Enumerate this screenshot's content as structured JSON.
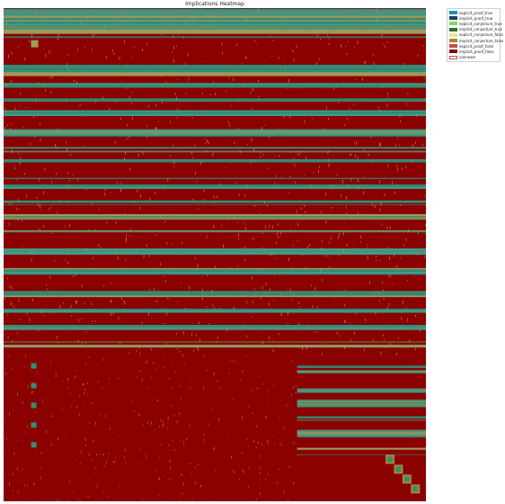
{
  "chart_data": {
    "type": "heatmap",
    "title": "Implications Heatmap",
    "xlabel": "",
    "ylabel": "",
    "grid": false,
    "legend_position": "outside-top-right",
    "categories": [
      {
        "name": "explicit_proof_true",
        "color": "#1f8fbf"
      },
      {
        "name": "implicit_proof_true",
        "color": "#15435f"
      },
      {
        "name": "explicit_conjecture_true",
        "color": "#8fd15a"
      },
      {
        "name": "implicit_conjecture_true",
        "color": "#2e6b2e"
      },
      {
        "name": "explicit_conjecture_false",
        "color": "#f0e58a"
      },
      {
        "name": "implicit_conjecture_false",
        "color": "#a8863a"
      },
      {
        "name": "explicit_proof_false",
        "color": "#c0504d"
      },
      {
        "name": "implicit_proof_false",
        "color": "#8b0000"
      },
      {
        "name": "unknown",
        "color": "#ffffff"
      }
    ],
    "row_blocks": [
      {
        "from": 0.0,
        "to": 0.06,
        "pattern": "mixed-olive"
      },
      {
        "from": 0.06,
        "to": 0.115,
        "pattern": "implicit_proof_false"
      },
      {
        "from": 0.115,
        "to": 0.14,
        "pattern": "teal-band"
      },
      {
        "from": 0.14,
        "to": 0.7,
        "pattern": "alternating-teal-red"
      },
      {
        "from": 0.7,
        "to": 1.0,
        "pattern": "implicit_proof_false"
      }
    ],
    "column_split": 0.695,
    "lower_right": {
      "from_row": 0.7,
      "pattern": "alternating-teal-red"
    },
    "diagonal_cells": [
      {
        "row": 0.915,
        "col": 0.915
      },
      {
        "row": 0.935,
        "col": 0.935
      },
      {
        "row": 0.955,
        "col": 0.955
      },
      {
        "row": 0.975,
        "col": 0.975
      }
    ]
  }
}
